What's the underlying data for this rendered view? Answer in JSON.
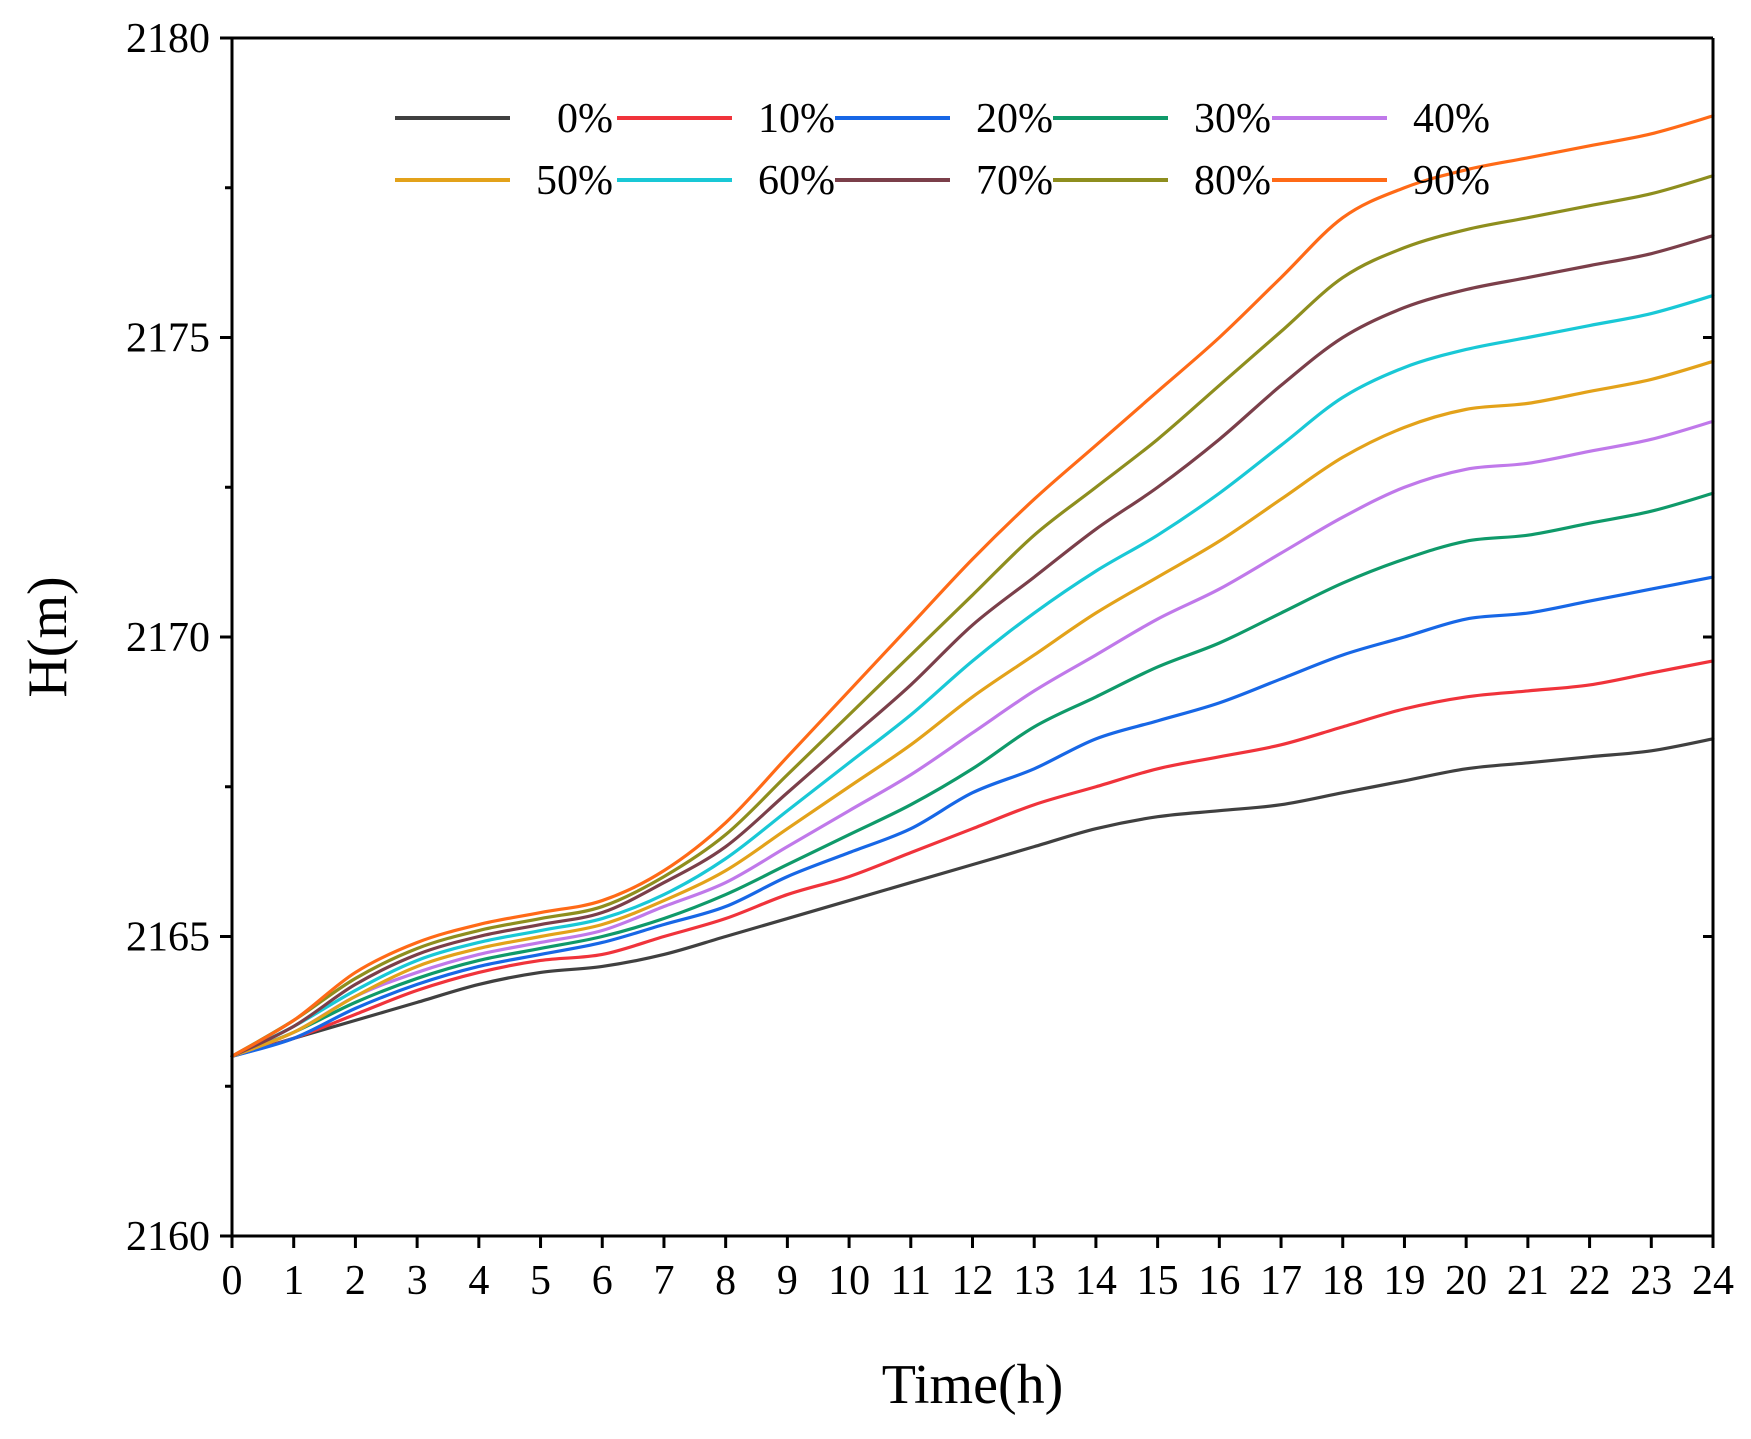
{
  "chart_data": {
    "type": "line",
    "title": "",
    "xlabel": "Time(h)",
    "ylabel": "H(m)",
    "xlim": [
      0,
      24
    ],
    "ylim": [
      2160,
      2180
    ],
    "x_ticks": [
      0,
      1,
      2,
      3,
      4,
      5,
      6,
      7,
      8,
      9,
      10,
      11,
      12,
      13,
      14,
      15,
      16,
      17,
      18,
      19,
      20,
      21,
      22,
      23,
      24
    ],
    "y_ticks": [
      2160,
      2165,
      2170,
      2175,
      2180
    ],
    "grid": false,
    "legend_position": "top",
    "x": [
      0,
      1,
      2,
      3,
      4,
      5,
      6,
      7,
      8,
      9,
      10,
      11,
      12,
      13,
      14,
      15,
      16,
      17,
      18,
      19,
      20,
      21,
      22,
      23,
      24
    ],
    "series": [
      {
        "name": "0%",
        "color": "#404040",
        "values": [
          2163.0,
          2163.3,
          2163.6,
          2163.9,
          2164.2,
          2164.4,
          2164.5,
          2164.7,
          2165.0,
          2165.3,
          2165.6,
          2165.9,
          2166.2,
          2166.5,
          2166.8,
          2167.0,
          2167.1,
          2167.2,
          2167.4,
          2167.6,
          2167.8,
          2167.9,
          2168.0,
          2168.1,
          2168.3
        ]
      },
      {
        "name": "10%",
        "color": "#f0333b",
        "values": [
          2163.0,
          2163.3,
          2163.7,
          2164.1,
          2164.4,
          2164.6,
          2164.7,
          2165.0,
          2165.3,
          2165.7,
          2166.0,
          2166.4,
          2166.8,
          2167.2,
          2167.5,
          2167.8,
          2168.0,
          2168.2,
          2168.5,
          2168.8,
          2169.0,
          2169.1,
          2169.2,
          2169.4,
          2169.6
        ]
      },
      {
        "name": "20%",
        "color": "#1767e6",
        "values": [
          2163.0,
          2163.3,
          2163.8,
          2164.2,
          2164.5,
          2164.7,
          2164.9,
          2165.2,
          2165.5,
          2166.0,
          2166.4,
          2166.8,
          2167.4,
          2167.8,
          2168.3,
          2168.6,
          2168.9,
          2169.3,
          2169.7,
          2170.0,
          2170.3,
          2170.4,
          2170.6,
          2170.8,
          2171.0
        ]
      },
      {
        "name": "30%",
        "color": "#0f9a6a",
        "values": [
          2163.0,
          2163.4,
          2163.9,
          2164.3,
          2164.6,
          2164.8,
          2165.0,
          2165.3,
          2165.7,
          2166.2,
          2166.7,
          2167.2,
          2167.8,
          2168.5,
          2169.0,
          2169.5,
          2169.9,
          2170.4,
          2170.9,
          2171.3,
          2171.6,
          2171.7,
          2171.9,
          2172.1,
          2172.4
        ]
      },
      {
        "name": "40%",
        "color": "#c079ea",
        "values": [
          2163.0,
          2163.4,
          2164.0,
          2164.4,
          2164.7,
          2164.9,
          2165.1,
          2165.5,
          2165.9,
          2166.5,
          2167.1,
          2167.7,
          2168.4,
          2169.1,
          2169.7,
          2170.3,
          2170.8,
          2171.4,
          2172.0,
          2172.5,
          2172.8,
          2172.9,
          2173.1,
          2173.3,
          2173.6
        ]
      },
      {
        "name": "50%",
        "color": "#e3a21a",
        "values": [
          2163.0,
          2163.4,
          2164.0,
          2164.5,
          2164.8,
          2165.0,
          2165.2,
          2165.6,
          2166.1,
          2166.8,
          2167.5,
          2168.2,
          2169.0,
          2169.7,
          2170.4,
          2171.0,
          2171.6,
          2172.3,
          2173.0,
          2173.5,
          2173.8,
          2173.9,
          2174.1,
          2174.3,
          2174.6
        ]
      },
      {
        "name": "60%",
        "color": "#19c8d6",
        "values": [
          2163.0,
          2163.5,
          2164.1,
          2164.6,
          2164.9,
          2165.1,
          2165.3,
          2165.7,
          2166.3,
          2167.1,
          2167.9,
          2168.7,
          2169.6,
          2170.4,
          2171.1,
          2171.7,
          2172.4,
          2173.2,
          2174.0,
          2174.5,
          2174.8,
          2175.0,
          2175.2,
          2175.4,
          2175.7
        ]
      },
      {
        "name": "70%",
        "color": "#7b3f4a",
        "values": [
          2163.0,
          2163.5,
          2164.2,
          2164.7,
          2165.0,
          2165.2,
          2165.4,
          2165.9,
          2166.5,
          2167.4,
          2168.3,
          2169.2,
          2170.2,
          2171.0,
          2171.8,
          2172.5,
          2173.3,
          2174.2,
          2175.0,
          2175.5,
          2175.8,
          2176.0,
          2176.2,
          2176.4,
          2176.7
        ]
      },
      {
        "name": "80%",
        "color": "#8e8e1e",
        "values": [
          2163.0,
          2163.6,
          2164.3,
          2164.8,
          2165.1,
          2165.3,
          2165.5,
          2166.0,
          2166.7,
          2167.7,
          2168.7,
          2169.7,
          2170.7,
          2171.7,
          2172.5,
          2173.3,
          2174.2,
          2175.1,
          2176.0,
          2176.5,
          2176.8,
          2177.0,
          2177.2,
          2177.4,
          2177.7
        ]
      },
      {
        "name": "90%",
        "color": "#ff6a17",
        "values": [
          2163.0,
          2163.6,
          2164.4,
          2164.9,
          2165.2,
          2165.4,
          2165.6,
          2166.1,
          2166.9,
          2168.0,
          2169.1,
          2170.2,
          2171.3,
          2172.3,
          2173.2,
          2174.1,
          2175.0,
          2176.0,
          2177.0,
          2177.5,
          2177.8,
          2178.0,
          2178.2,
          2178.4,
          2178.7
        ]
      }
    ]
  }
}
